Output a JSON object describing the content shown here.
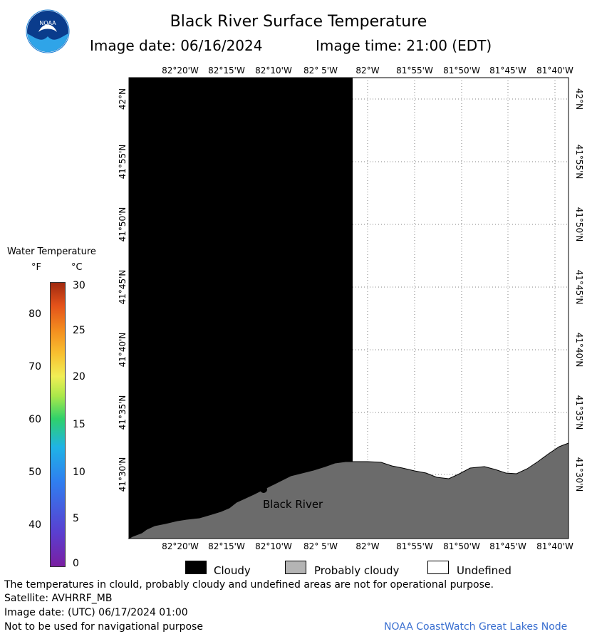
{
  "header": {
    "title": "Black River Surface Temperature",
    "image_date": "Image date: 06/16/2024",
    "image_time": "Image time: 21:00 (EDT)"
  },
  "logo": {
    "icon": "noaa-logo",
    "text": "NOAA"
  },
  "map": {
    "longitude_labels": [
      "82°20'W",
      "82°15'W",
      "82°10'W",
      "82° 5'W",
      "82°W",
      "81°55'W",
      "81°50'W",
      "81°45'W",
      "81°40'W"
    ],
    "latitude_labels": [
      "42°N",
      "41°55'N",
      "41°50'N",
      "41°45'N",
      "41°40'N",
      "41°35'N",
      "41°30'N"
    ],
    "place_label": "Black River",
    "colors": {
      "cloudy": "#000000",
      "land": "#6b6b6b",
      "undefined": "#ffffff",
      "grid": "#808080"
    }
  },
  "legend": {
    "title": "Water Temperature",
    "unit_f": "°F",
    "unit_c": "°C",
    "fahrenheit_ticks": [
      "80",
      "70",
      "60",
      "50",
      "40"
    ],
    "celsius_ticks": [
      "30",
      "25",
      "20",
      "15",
      "10",
      "5",
      "0"
    ],
    "categories": [
      {
        "label": "Cloudy",
        "color": "#000000"
      },
      {
        "label": "Probably cloudy",
        "color": "#b4b4b4"
      },
      {
        "label": "Undefined",
        "color": "#ffffff"
      }
    ]
  },
  "footer": {
    "note": "The temperatures in clould, probably cloudy and undefined areas are not for operational purpose.",
    "satellite": "Satellite: AVHRRF_MB",
    "utc_date": "Image date: (UTC) 06/17/2024  01:00",
    "nav_warning": "Not to be used for navigational purpose",
    "credit": "NOAA CoastWatch Great Lakes Node"
  }
}
